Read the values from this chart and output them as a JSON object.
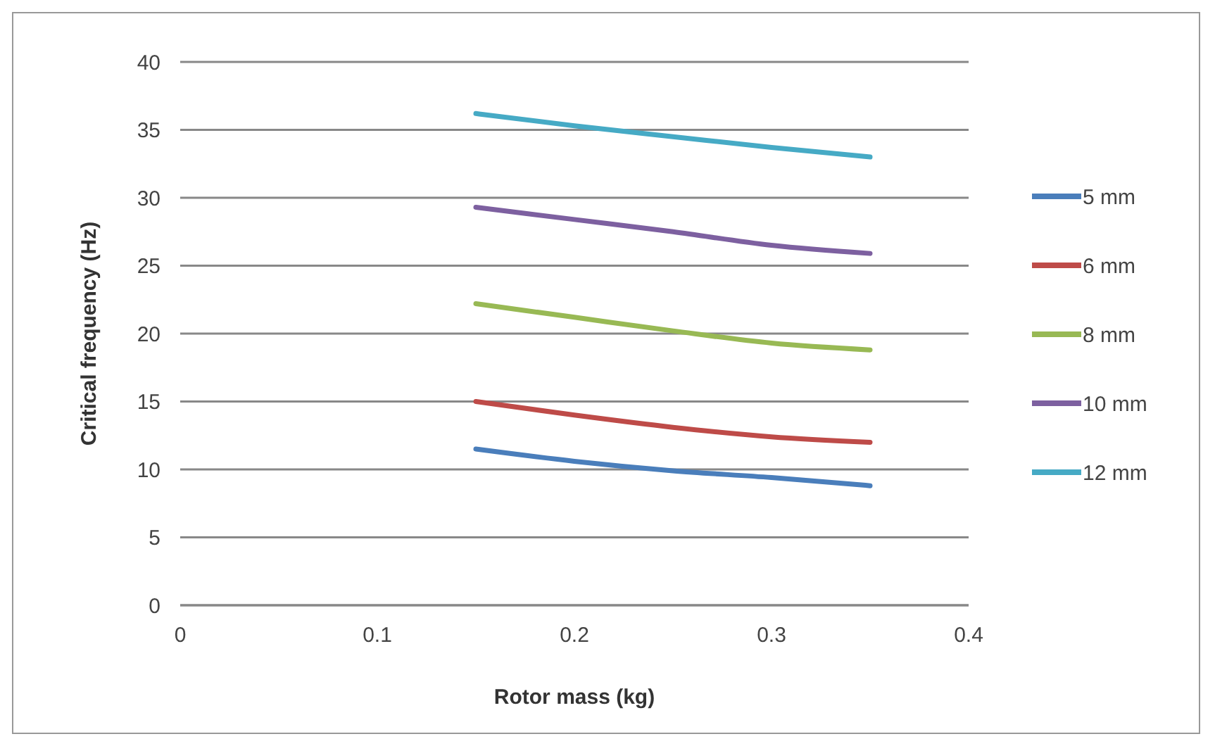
{
  "chart_data": {
    "type": "line",
    "xlabel": "Rotor mass (kg)",
    "ylabel": "Critical frequency (Hz)",
    "x": [
      0.15,
      0.2,
      0.25,
      0.3,
      0.35
    ],
    "xlim": [
      0,
      0.4
    ],
    "xticks": [
      0,
      0.1,
      0.2,
      0.3,
      0.4
    ],
    "ylim": [
      0,
      40
    ],
    "yticks": [
      0,
      5,
      10,
      15,
      20,
      25,
      30,
      35,
      40
    ],
    "grid": "y",
    "legend": "right",
    "marker": "none",
    "line_style": "solid",
    "series": [
      {
        "name": "5 mm",
        "color": "#4a7ebb",
        "values": [
          11.5,
          10.6,
          9.9,
          9.4,
          8.8
        ]
      },
      {
        "name": "6 mm",
        "color": "#be4b48",
        "values": [
          15.0,
          14.0,
          13.1,
          12.4,
          12.0
        ]
      },
      {
        "name": "8 mm",
        "color": "#98b954",
        "values": [
          22.2,
          21.2,
          20.2,
          19.3,
          18.8
        ]
      },
      {
        "name": "10 mm",
        "color": "#7d60a0",
        "values": [
          29.3,
          28.4,
          27.5,
          26.5,
          25.9
        ]
      },
      {
        "name": "12 mm",
        "color": "#46aac5",
        "values": [
          36.2,
          35.3,
          34.5,
          33.7,
          33.0
        ]
      }
    ]
  }
}
